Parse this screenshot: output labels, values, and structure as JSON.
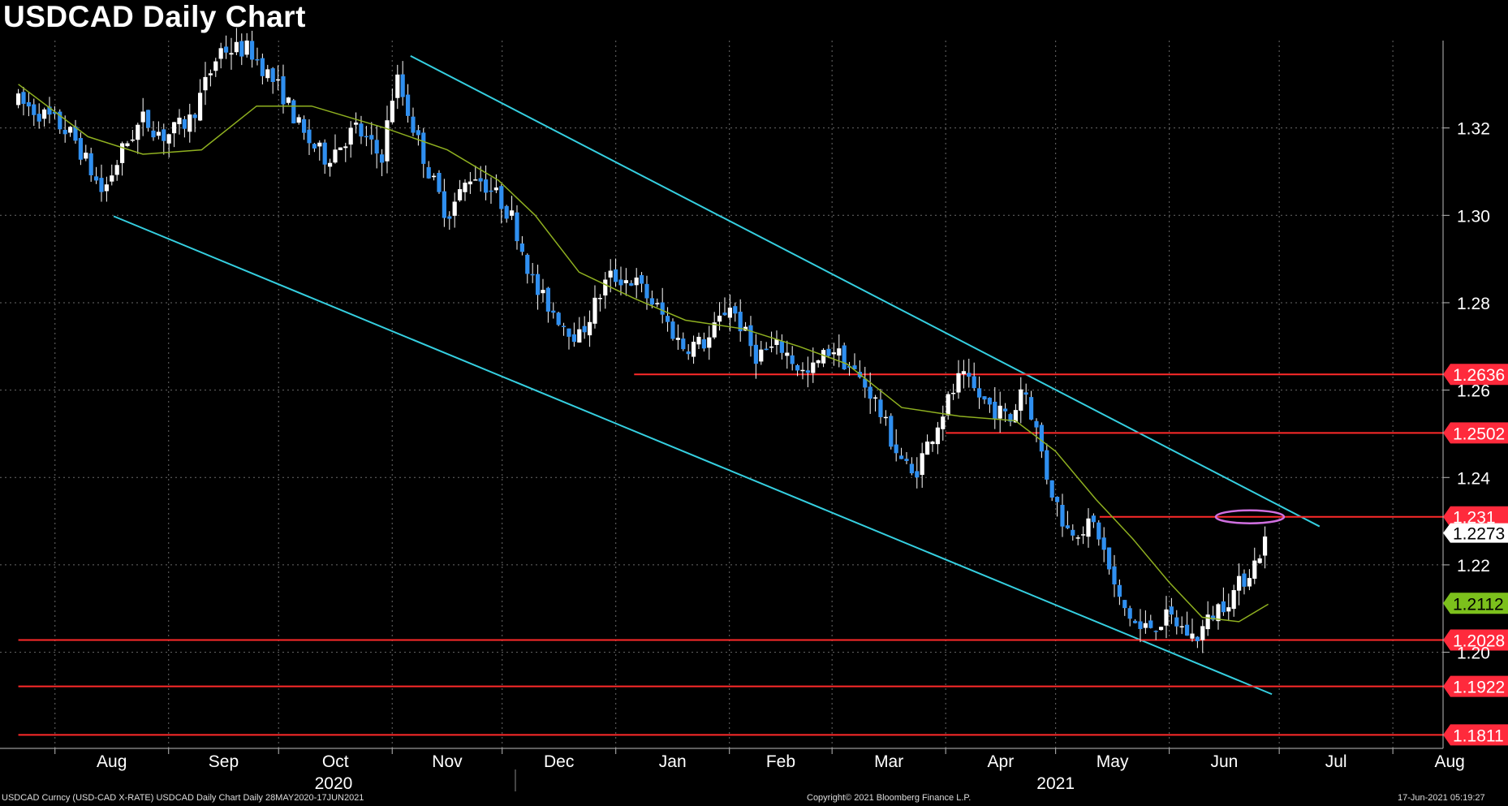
{
  "title": "USDCAD Daily Chart",
  "footer": {
    "left": "USDCAD Curncy (USD-CAD X-RATE) USDCAD Daily Chart  Daily 28MAY2020-17JUN2021",
    "center": "Copyright© 2021 Bloomberg Finance L.P.",
    "right": "17-Jun-2021 05:19:27"
  },
  "colors": {
    "background": "#000000",
    "grid": "#6a6a6a",
    "candle_up": "#ffffff",
    "candle_down": "#2f8ff0",
    "moving_average": "#8fb020",
    "channel": "#35cfe0",
    "level": "#ff2a2a",
    "level_label_bg": "#ff2a3c",
    "current_label_bg": "#ffffff",
    "ma_label_bg": "#7cc01c",
    "highlight_ellipse": "#d070e0"
  },
  "chart_data": {
    "type": "candlestick",
    "ylim": [
      1.178,
      1.34
    ],
    "y_ticks": [
      1.2,
      1.22,
      1.24,
      1.26,
      1.28,
      1.3,
      1.32
    ],
    "y_tick_labels": [
      "1.20",
      "1.22",
      "1.24",
      "1.26",
      "1.28",
      "1.30",
      "1.32"
    ],
    "x_months": [
      {
        "label": "Aug",
        "date": "2020-08-01"
      },
      {
        "label": "Sep",
        "date": "2020-09-01"
      },
      {
        "label": "Oct",
        "date": "2020-10-01"
      },
      {
        "label": "Nov",
        "date": "2020-11-01"
      },
      {
        "label": "Dec",
        "date": "2020-12-01"
      },
      {
        "label": "Jan",
        "date": "2021-01-01"
      },
      {
        "label": "Feb",
        "date": "2021-02-01"
      },
      {
        "label": "Mar",
        "date": "2021-03-01"
      },
      {
        "label": "Apr",
        "date": "2021-04-01"
      },
      {
        "label": "May",
        "date": "2021-05-01"
      },
      {
        "label": "Jun",
        "date": "2021-06-01"
      },
      {
        "label": "Jul",
        "date": "2021-07-01"
      },
      {
        "label": "Aug",
        "date": "2021-08-01"
      }
    ],
    "x_years": [
      {
        "label": "2020",
        "date": "2020-10-16"
      },
      {
        "label": "2021",
        "date": "2021-05-01"
      }
    ],
    "price_path": [
      {
        "date": "2020-07-22",
        "close": 1.326
      },
      {
        "date": "2020-07-31",
        "close": 1.322
      },
      {
        "date": "2020-08-06",
        "close": 1.318
      },
      {
        "date": "2020-08-14",
        "close": 1.305
      },
      {
        "date": "2020-08-20",
        "close": 1.316
      },
      {
        "date": "2020-08-25",
        "close": 1.322
      },
      {
        "date": "2020-08-31",
        "close": 1.318
      },
      {
        "date": "2020-09-07",
        "close": 1.322
      },
      {
        "date": "2020-09-15",
        "close": 1.338
      },
      {
        "date": "2020-09-23",
        "close": 1.338
      },
      {
        "date": "2020-10-02",
        "close": 1.328
      },
      {
        "date": "2020-10-08",
        "close": 1.318
      },
      {
        "date": "2020-10-14",
        "close": 1.313
      },
      {
        "date": "2020-10-22",
        "close": 1.32
      },
      {
        "date": "2020-10-29",
        "close": 1.313
      },
      {
        "date": "2020-11-02",
        "close": 1.332
      },
      {
        "date": "2020-11-06",
        "close": 1.322
      },
      {
        "date": "2020-11-11",
        "close": 1.31
      },
      {
        "date": "2020-11-16",
        "close": 1.3
      },
      {
        "date": "2020-11-23",
        "close": 1.31
      },
      {
        "date": "2020-11-30",
        "close": 1.304
      },
      {
        "date": "2020-12-04",
        "close": 1.299
      },
      {
        "date": "2020-12-10",
        "close": 1.283
      },
      {
        "date": "2020-12-17",
        "close": 1.276
      },
      {
        "date": "2020-12-22",
        "close": 1.272
      },
      {
        "date": "2020-12-30",
        "close": 1.286
      },
      {
        "date": "2021-01-06",
        "close": 1.285
      },
      {
        "date": "2021-01-13",
        "close": 1.278
      },
      {
        "date": "2021-01-19",
        "close": 1.27
      },
      {
        "date": "2021-01-26",
        "close": 1.271
      },
      {
        "date": "2021-02-01",
        "close": 1.28
      },
      {
        "date": "2021-02-08",
        "close": 1.268
      },
      {
        "date": "2021-02-15",
        "close": 1.27
      },
      {
        "date": "2021-02-22",
        "close": 1.263
      },
      {
        "date": "2021-03-01",
        "close": 1.27
      },
      {
        "date": "2021-03-05",
        "close": 1.266
      },
      {
        "date": "2021-03-12",
        "close": 1.259
      },
      {
        "date": "2021-03-18",
        "close": 1.247
      },
      {
        "date": "2021-03-23",
        "close": 1.24
      },
      {
        "date": "2021-03-30",
        "close": 1.253
      },
      {
        "date": "2021-04-05",
        "close": 1.263
      },
      {
        "date": "2021-04-12",
        "close": 1.257
      },
      {
        "date": "2021-04-19",
        "close": 1.253
      },
      {
        "date": "2021-04-22",
        "close": 1.262
      },
      {
        "date": "2021-04-26",
        "close": 1.25
      },
      {
        "date": "2021-04-29",
        "close": 1.239
      },
      {
        "date": "2021-05-04",
        "close": 1.228
      },
      {
        "date": "2021-05-12",
        "close": 1.229
      },
      {
        "date": "2021-05-18",
        "close": 1.212
      },
      {
        "date": "2021-05-24",
        "close": 1.205
      },
      {
        "date": "2021-06-01",
        "close": 1.208
      },
      {
        "date": "2021-06-08",
        "close": 1.203
      },
      {
        "date": "2021-06-14",
        "close": 1.21
      },
      {
        "date": "2021-06-18",
        "close": 1.213
      },
      {
        "date": "2021-06-24",
        "close": 1.22
      },
      {
        "date": "2021-06-28",
        "close": 1.227
      }
    ],
    "moving_average": [
      {
        "date": "2020-07-22",
        "value": 1.33
      },
      {
        "date": "2020-08-10",
        "value": 1.318
      },
      {
        "date": "2020-08-25",
        "value": 1.314
      },
      {
        "date": "2020-09-10",
        "value": 1.315
      },
      {
        "date": "2020-09-25",
        "value": 1.325
      },
      {
        "date": "2020-10-10",
        "value": 1.325
      },
      {
        "date": "2020-10-30",
        "value": 1.32
      },
      {
        "date": "2020-11-16",
        "value": 1.315
      },
      {
        "date": "2020-11-30",
        "value": 1.308
      },
      {
        "date": "2020-12-10",
        "value": 1.3
      },
      {
        "date": "2020-12-22",
        "value": 1.287
      },
      {
        "date": "2021-01-06",
        "value": 1.281
      },
      {
        "date": "2021-01-20",
        "value": 1.276
      },
      {
        "date": "2021-02-05",
        "value": 1.274
      },
      {
        "date": "2021-02-20",
        "value": 1.27
      },
      {
        "date": "2021-03-05",
        "value": 1.266
      },
      {
        "date": "2021-03-20",
        "value": 1.256
      },
      {
        "date": "2021-04-05",
        "value": 1.254
      },
      {
        "date": "2021-04-20",
        "value": 1.253
      },
      {
        "date": "2021-05-01",
        "value": 1.246
      },
      {
        "date": "2021-05-12",
        "value": 1.235
      },
      {
        "date": "2021-05-22",
        "value": 1.226
      },
      {
        "date": "2021-06-01",
        "value": 1.216
      },
      {
        "date": "2021-06-10",
        "value": 1.208
      },
      {
        "date": "2021-06-20",
        "value": 1.207
      },
      {
        "date": "2021-06-28",
        "value": 1.211
      }
    ],
    "channel_lines": [
      {
        "start": {
          "date": "2020-11-06",
          "value": 1.3365
        },
        "end": {
          "date": "2021-07-12",
          "value": 1.2288
        }
      },
      {
        "start": {
          "date": "2020-08-17",
          "value": 1.2998
        },
        "end": {
          "date": "2021-06-29",
          "value": 1.1904
        }
      }
    ],
    "levels": [
      {
        "value": 1.2636,
        "label": "1.2636",
        "start": "2021-01-06"
      },
      {
        "value": 1.2502,
        "label": "1.2502",
        "start": "2021-04-01"
      },
      {
        "value": 1.231,
        "label": "1.231",
        "start": "2021-05-13"
      },
      {
        "value": 1.2028,
        "label": "1.2028",
        "start": "2020-07-22"
      },
      {
        "value": 1.1922,
        "label": "1.1922",
        "start": "2020-07-22"
      },
      {
        "value": 1.1811,
        "label": "1.1811",
        "start": "2020-07-22"
      }
    ],
    "current_price": {
      "value": 1.2273,
      "label": "1.2273"
    },
    "moving_average_last": {
      "value": 1.2112,
      "label": "1.2112"
    },
    "highlight": {
      "date": "2021-06-23",
      "value": 1.231
    }
  }
}
